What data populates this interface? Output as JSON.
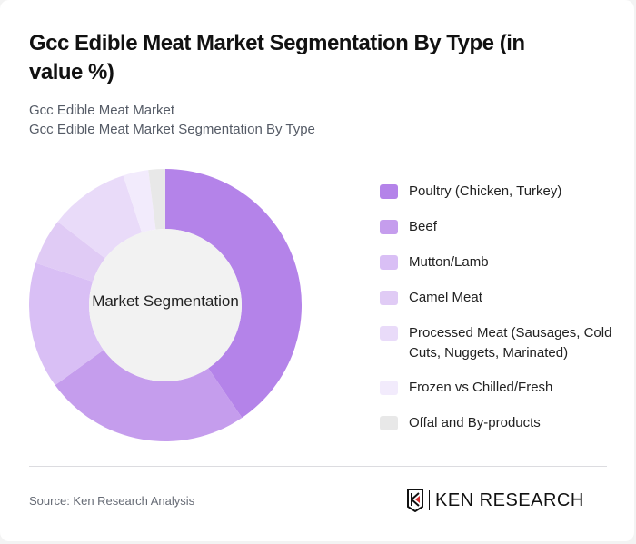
{
  "header": {
    "title": "Gcc Edible Meat Market Segmentation By Type (in value %)",
    "subtitle_1": "Gcc Edible Meat Market",
    "subtitle_2": "Gcc Edible Meat Market Segmentation By Type"
  },
  "chart_data": {
    "type": "pie",
    "subtype": "donut",
    "title": "Gcc Edible Meat Market Segmentation By Type (in value %)",
    "center_label": "Market Segmentation",
    "categories": [
      "Poultry (Chicken, Turkey)",
      "Beef",
      "Mutton/Lamb",
      "Camel Meat",
      "Processed Meat (Sausages, Cold Cuts, Nuggets, Marinated)",
      "Frozen vs Chilled/Fresh",
      "Offal and By-products"
    ],
    "values": [
      40.5,
      24.5,
      15,
      5.5,
      9.5,
      3,
      2
    ],
    "colors": [
      "#b483e9",
      "#c59ded",
      "#d9bff5",
      "#e0cbf5",
      "#e9dbf9",
      "#f2ebfc",
      "#e8e8e8"
    ],
    "legend_position": "right"
  },
  "legend": [
    {
      "label": "Poultry (Chicken, Turkey)",
      "color": "#b483e9"
    },
    {
      "label": "Beef",
      "color": "#c59ded"
    },
    {
      "label": "Mutton/Lamb",
      "color": "#d9bff5"
    },
    {
      "label": "Camel Meat",
      "color": "#e0cbf5"
    },
    {
      "label": "Processed Meat (Sausages, Cold Cuts, Nuggets, Marinated)",
      "color": "#e9dbf9"
    },
    {
      "label": "Frozen vs Chilled/Fresh",
      "color": "#f2ebfc"
    },
    {
      "label": "Offal and By-products",
      "color": "#e8e8e8"
    }
  ],
  "footer": {
    "source": "Source: Ken Research Analysis",
    "logo_text": "KEN RESEARCH"
  }
}
